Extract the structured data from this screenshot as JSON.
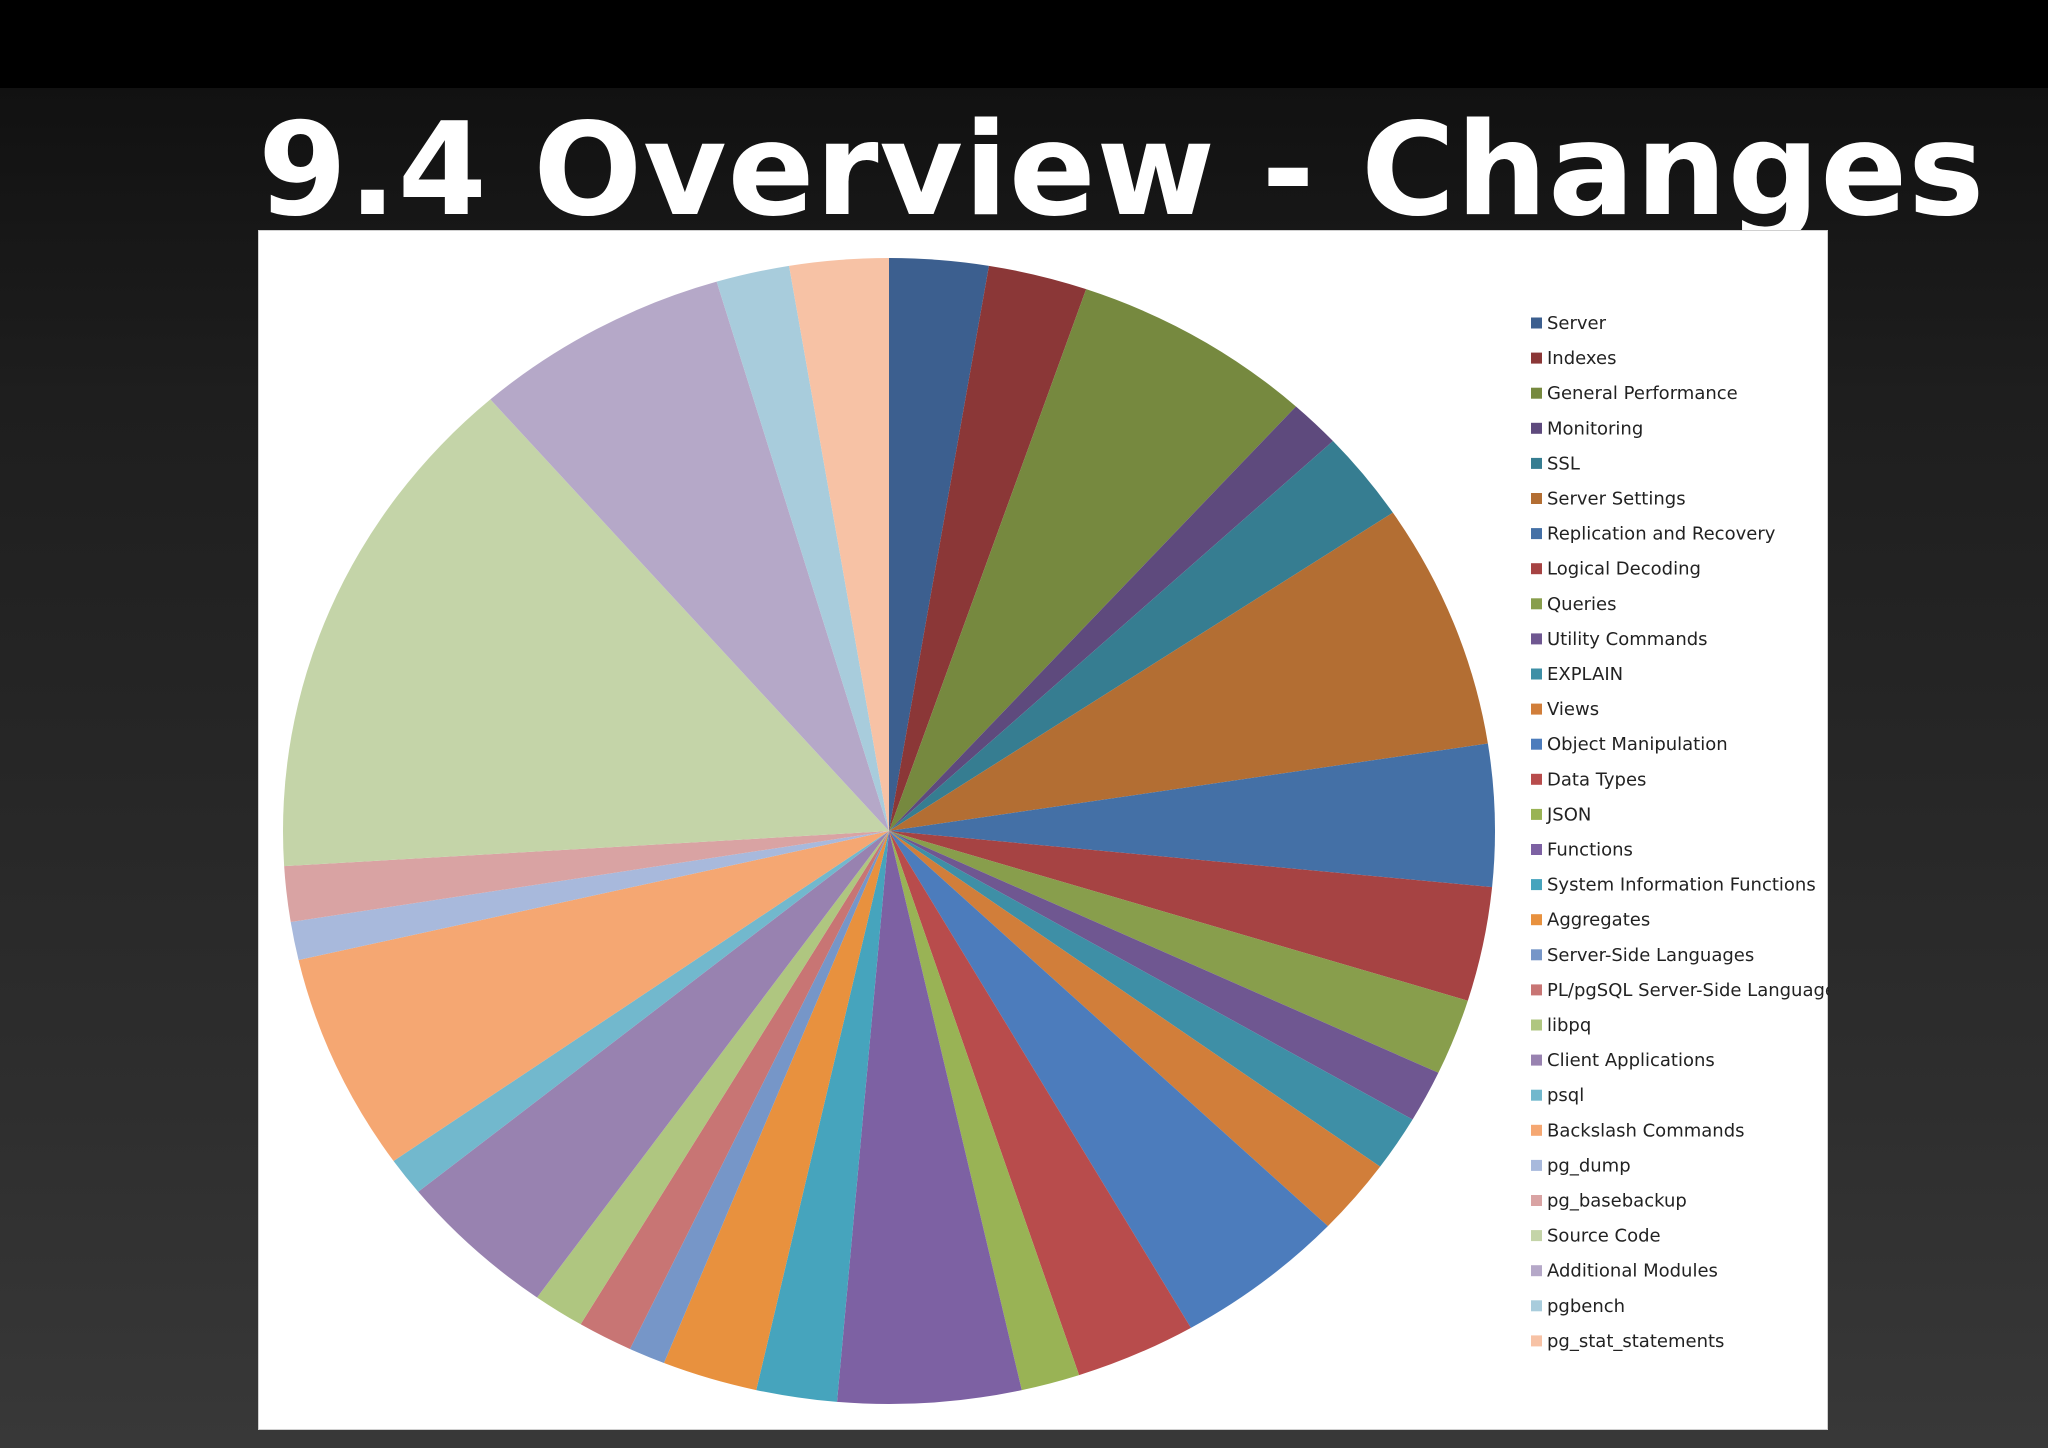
{
  "slide": {
    "title": "9.4 Overview - Changes"
  },
  "chart_data": {
    "type": "pie",
    "title": "",
    "start_angle_deg": 0,
    "direction": "clockwise",
    "legend_position": "right",
    "unit": "percent",
    "categories": [
      "Server",
      "Indexes",
      "General Performance",
      "Monitoring",
      "SSL",
      "Server Settings",
      "Replication and Recovery",
      "Logical Decoding",
      "Queries",
      "Utility Commands",
      "EXPLAIN",
      "Views",
      "Object Manipulation",
      "Data Types",
      "JSON",
      "Functions",
      "System Information Functions",
      "Aggregates",
      "Server-Side Languages",
      "PL/pgSQL Server-Side Language",
      "libpq",
      "Client Applications",
      "psql",
      "Backslash Commands",
      "pg_dump",
      "pg_basebackup",
      "Source Code",
      "Additional Modules",
      "pgbench",
      "pg_stat_statements"
    ],
    "values": [
      2.7,
      2.7,
      6.6,
      1.4,
      2.6,
      7.1,
      4.1,
      3.3,
      2.2,
      1.5,
      1.6,
      2.2,
      4.7,
      3.3,
      1.6,
      5.0,
      2.2,
      2.6,
      1.0,
      1.5,
      1.4,
      4.4,
      1.1,
      6.3,
      1.1,
      1.6,
      14.9,
      7.0,
      2.0,
      2.7
    ],
    "colors": [
      "#3c5f8f",
      "#8b3737",
      "#76893f",
      "#5e4a7d",
      "#367d91",
      "#b36e33",
      "#4470a6",
      "#a64343",
      "#889e4c",
      "#6f5791",
      "#3e8fa6",
      "#d17e3a",
      "#4c7cbc",
      "#b84c4c",
      "#99b355",
      "#7d61a3",
      "#46a4bd",
      "#e8913e",
      "#7696c8",
      "#c87574",
      "#afc680",
      "#9882b0",
      "#72b8cd",
      "#f5a772",
      "#a8b9dc",
      "#d9a3a3",
      "#c4d4a8",
      "#b5a8c8",
      "#a8ccdc",
      "#f7c2a5"
    ]
  }
}
